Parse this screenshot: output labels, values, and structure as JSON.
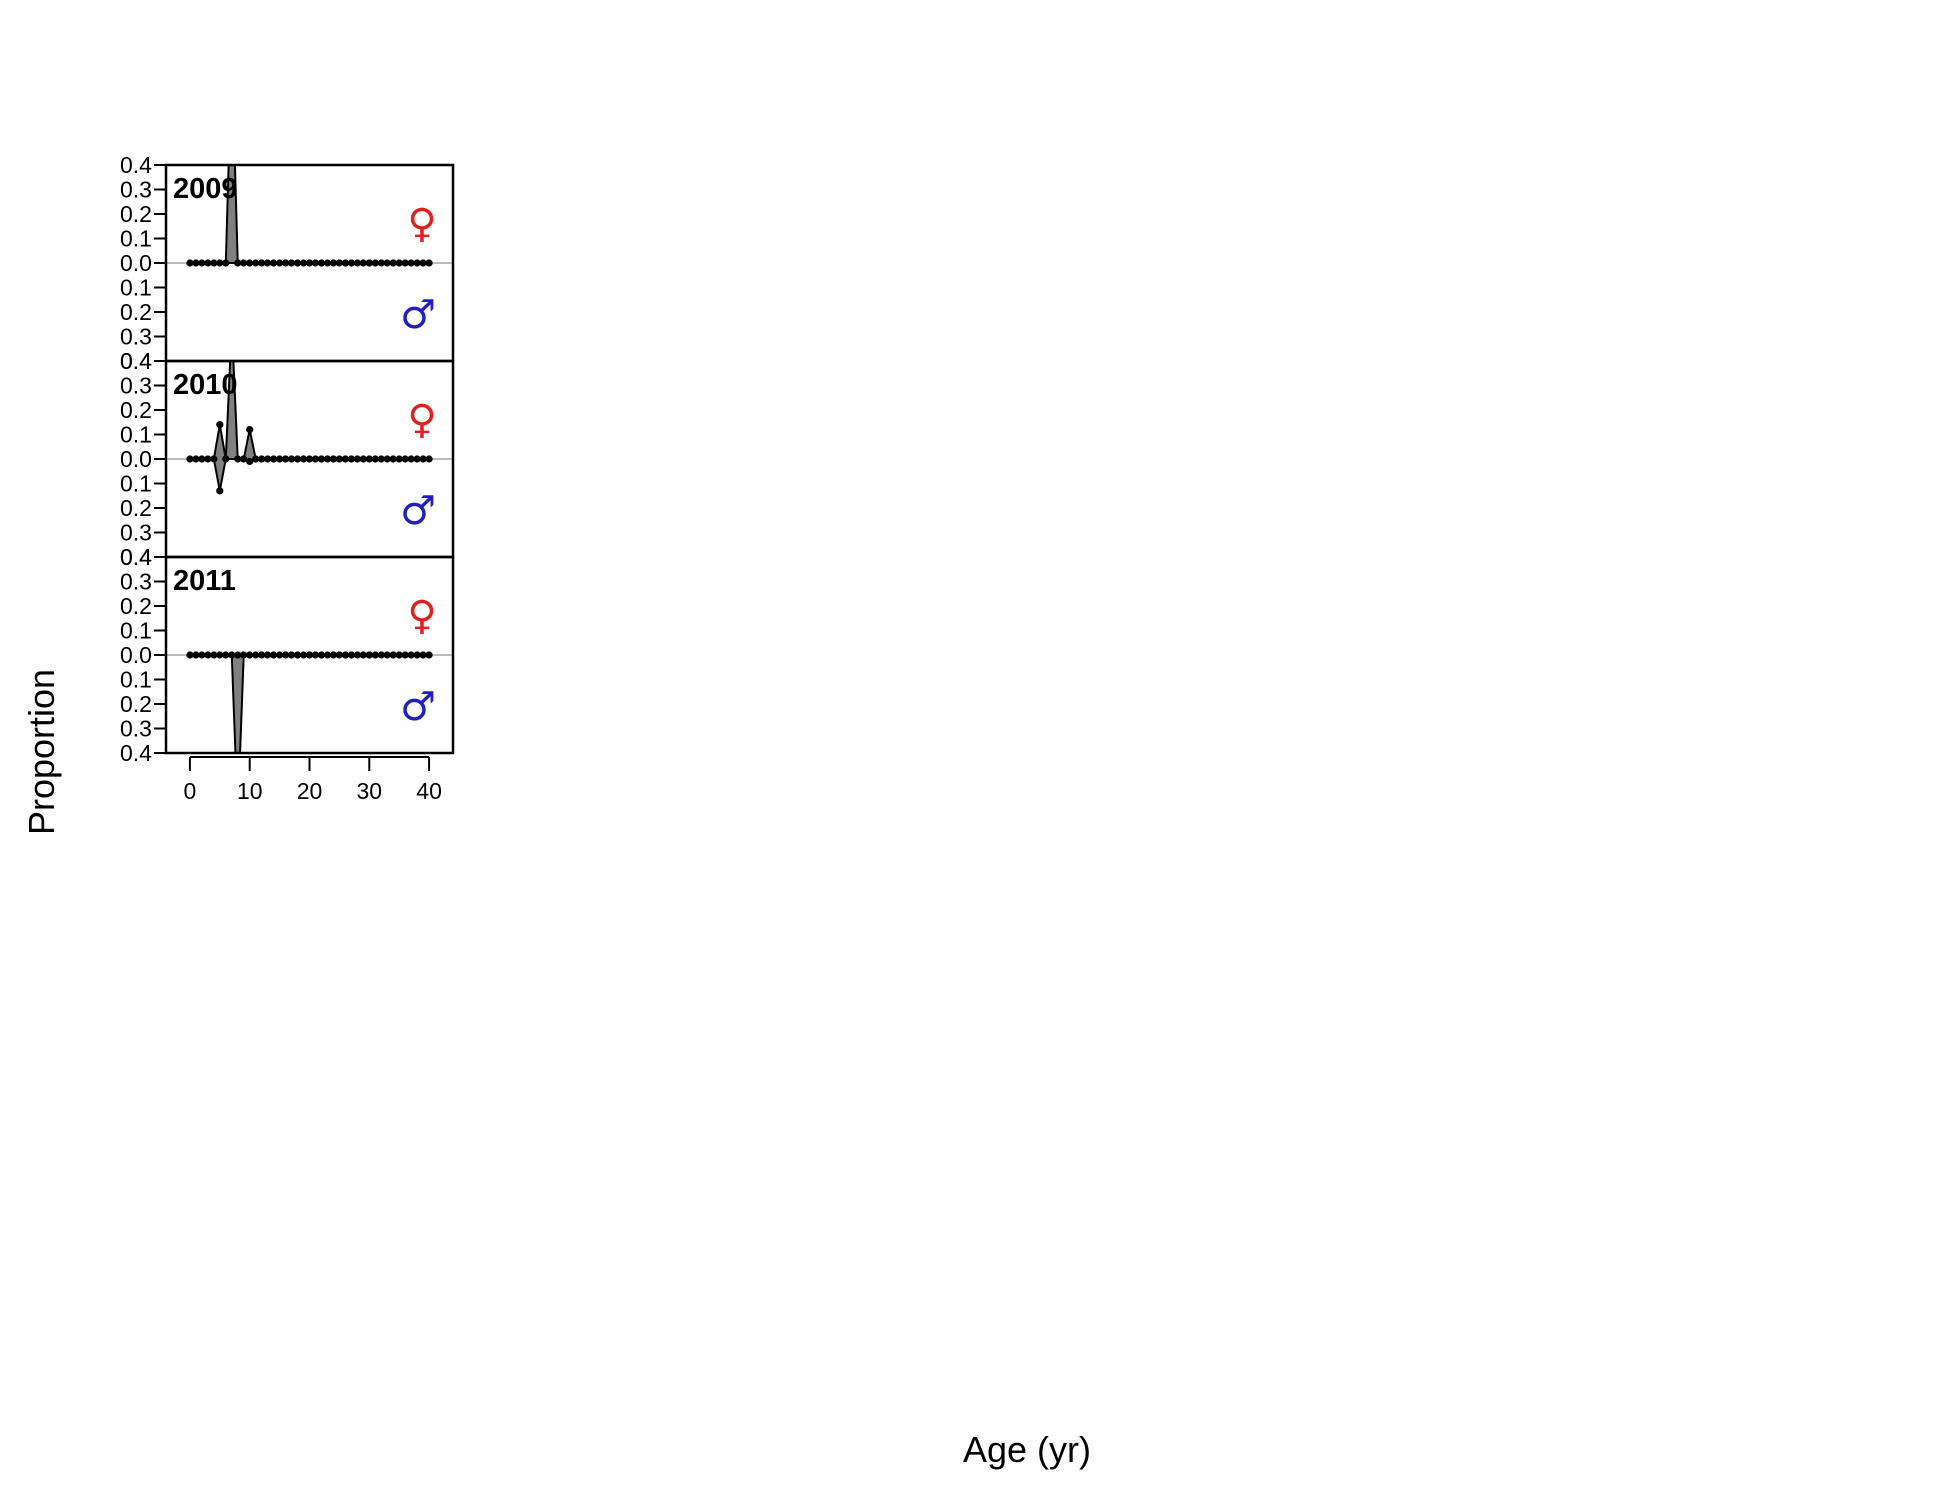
{
  "chart_data": {
    "type": "area",
    "xlabel": "Age (yr)",
    "ylabel": "Proportion",
    "xlim": [
      -4,
      44
    ],
    "ylim": [
      -0.4,
      0.4
    ],
    "x_ticks": [
      0,
      10,
      20,
      30,
      40
    ],
    "y_tick_values": [
      0.4,
      0.3,
      0.2,
      0.1,
      0.0,
      -0.1,
      -0.2,
      -0.3,
      -0.4
    ],
    "y_tick_labels": [
      "0.4",
      "0.3",
      "0.2",
      "0.1",
      "0.0",
      "0.1",
      "0.2",
      "0.3",
      "0.4"
    ],
    "ages": [
      0,
      40
    ],
    "zero_line_color": "#bbbbbb",
    "fill_color": "#808080",
    "female_symbol": "♀",
    "male_symbol": "♂",
    "female_color": "#e0201e",
    "male_color": "#2020c0",
    "panels": [
      {
        "year": "2009",
        "female": {
          "7": 0.85
        },
        "male": {}
      },
      {
        "year": "2010",
        "female": {
          "5": 0.14,
          "7": 0.55,
          "10": 0.12
        },
        "male": {
          "5": 0.13,
          "10": 0.01
        }
      },
      {
        "year": "2011",
        "female": {},
        "male": {
          "8": 0.65
        }
      }
    ]
  }
}
